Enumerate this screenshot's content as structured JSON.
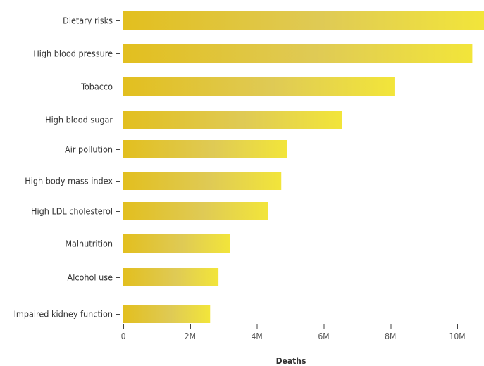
{
  "chart_data": {
    "type": "bar",
    "orientation": "horizontal",
    "categories": [
      "Dietary risks",
      "High blood pressure",
      "Tobacco",
      "High blood sugar",
      "Air pollution",
      "High body mass index",
      "High LDL cholesterol",
      "Malnutrition",
      "Alcohol use",
      "Impaired kidney function"
    ],
    "values": [
      10800000,
      10450000,
      8120000,
      6550000,
      4900000,
      4730000,
      4330000,
      3200000,
      2850000,
      2600000
    ],
    "xlabel": "Deaths",
    "ylabel": "",
    "xlim": [
      0,
      10800000
    ],
    "x_ticks": [
      {
        "value": 0,
        "label": "0"
      },
      {
        "value": 2000000,
        "label": "2M"
      },
      {
        "value": 4000000,
        "label": "4M"
      },
      {
        "value": 6000000,
        "label": "6M"
      },
      {
        "value": 8000000,
        "label": "8M"
      },
      {
        "value": 10000000,
        "label": "10M"
      }
    ],
    "grid": false,
    "legend": "none",
    "colors": {
      "bar_start": "#e2bf1f",
      "bar_mid": "#dfca55",
      "bar_end": "#f2e53a"
    }
  }
}
